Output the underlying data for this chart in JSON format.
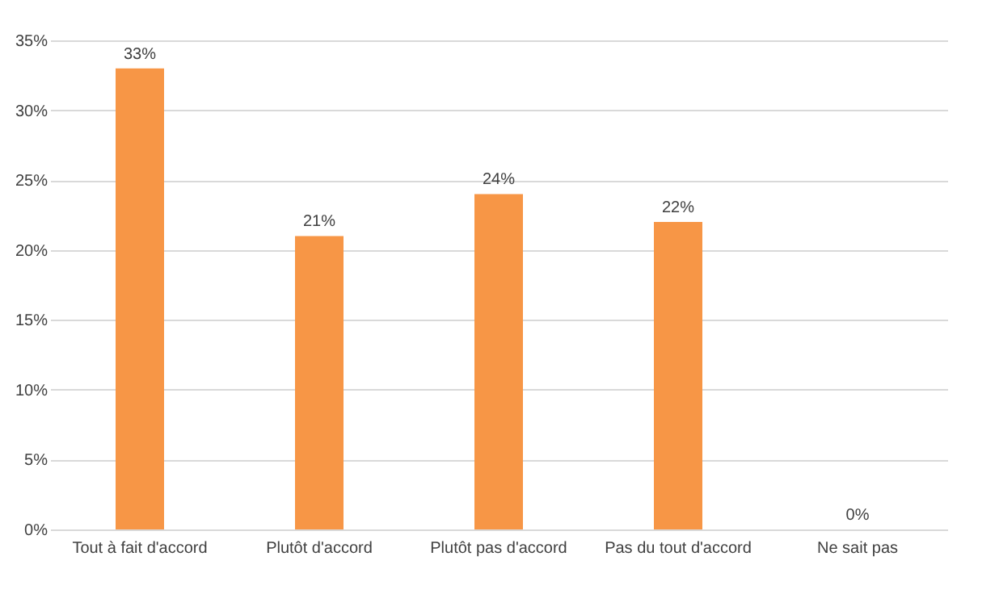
{
  "chart_data": {
    "type": "bar",
    "categories": [
      "Tout à fait d'accord",
      "Plutôt d'accord",
      "Plutôt pas d'accord",
      "Pas du tout d'accord",
      "Ne sait pas"
    ],
    "values": [
      33,
      21,
      24,
      22,
      0
    ],
    "value_labels": [
      "33%",
      "21%",
      "24%",
      "22%",
      "0%"
    ],
    "color": "#f79646",
    "ylim": [
      0,
      35
    ],
    "yticks": [
      {
        "value": 0,
        "label": "0%"
      },
      {
        "value": 5,
        "label": "5%"
      },
      {
        "value": 10,
        "label": "10%"
      },
      {
        "value": 15,
        "label": "15%"
      },
      {
        "value": 20,
        "label": "20%"
      },
      {
        "value": 25,
        "label": "25%"
      },
      {
        "value": 30,
        "label": "30%"
      },
      {
        "value": 35,
        "label": "35%"
      }
    ],
    "grid": "y"
  }
}
